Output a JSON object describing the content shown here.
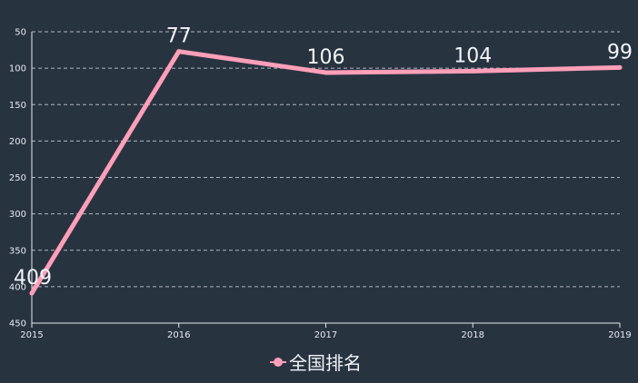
{
  "colors": {
    "background": "#283340",
    "series": "#ff9fb8",
    "grid": "#aeb6c0",
    "axis": "#e6e9ee",
    "text": "#f2f4f7"
  },
  "chart_data": {
    "type": "line",
    "title": "",
    "xlabel": "",
    "ylabel": "",
    "categories": [
      "2015",
      "2016",
      "2017",
      "2018",
      "2019"
    ],
    "y_inverse": true,
    "ylim": [
      50,
      450
    ],
    "yticks": [
      50,
      100,
      150,
      200,
      250,
      300,
      350,
      400,
      450
    ],
    "grid": true,
    "legend_position": "bottom-center",
    "series": [
      {
        "name": "全国排名",
        "values": [
          409,
          77,
          106,
          104,
          99
        ],
        "data_labels": [
          "409",
          "77",
          "106",
          "104",
          "99"
        ]
      }
    ]
  }
}
